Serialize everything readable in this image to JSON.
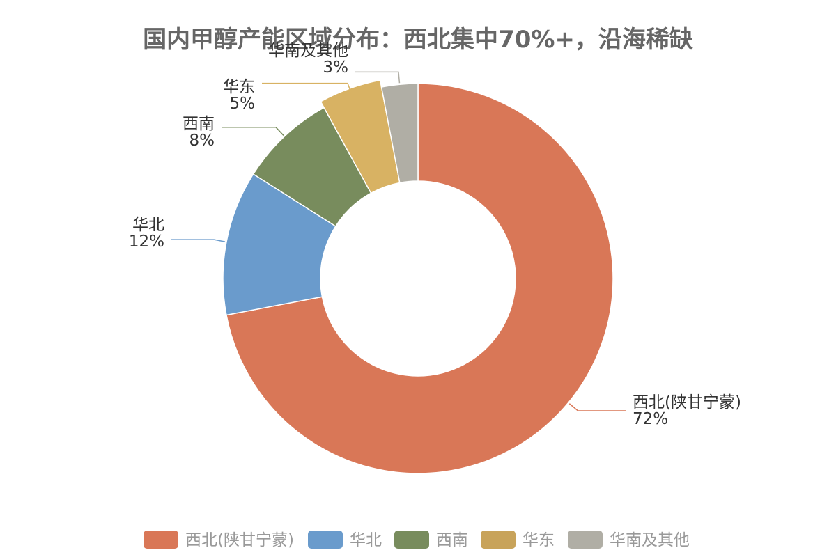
{
  "chart_data": {
    "type": "pie",
    "donut": true,
    "title": "国内甲醇产能区域分布：西北集中70%+，沿海稀缺",
    "legend_position": "bottom",
    "slices": [
      {
        "name": "西北(陕甘宁蒙)",
        "value": 72,
        "label": "72%",
        "color": "#d97757"
      },
      {
        "name": "华北",
        "value": 12,
        "label": "12%",
        "color": "#6a9bcc"
      },
      {
        "name": "西南",
        "value": 8,
        "label": "8%",
        "color": "#788c5d"
      },
      {
        "name": "华东",
        "value": 5,
        "label": "5%",
        "color": "#d8b263"
      },
      {
        "name": "华南及其他",
        "value": 3,
        "label": "3%",
        "color": "#b0aea5"
      }
    ],
    "legend_colors": [
      "#d97757",
      "#6a9bcc",
      "#788c5d",
      "#c8a35a",
      "#b0aea5"
    ]
  }
}
